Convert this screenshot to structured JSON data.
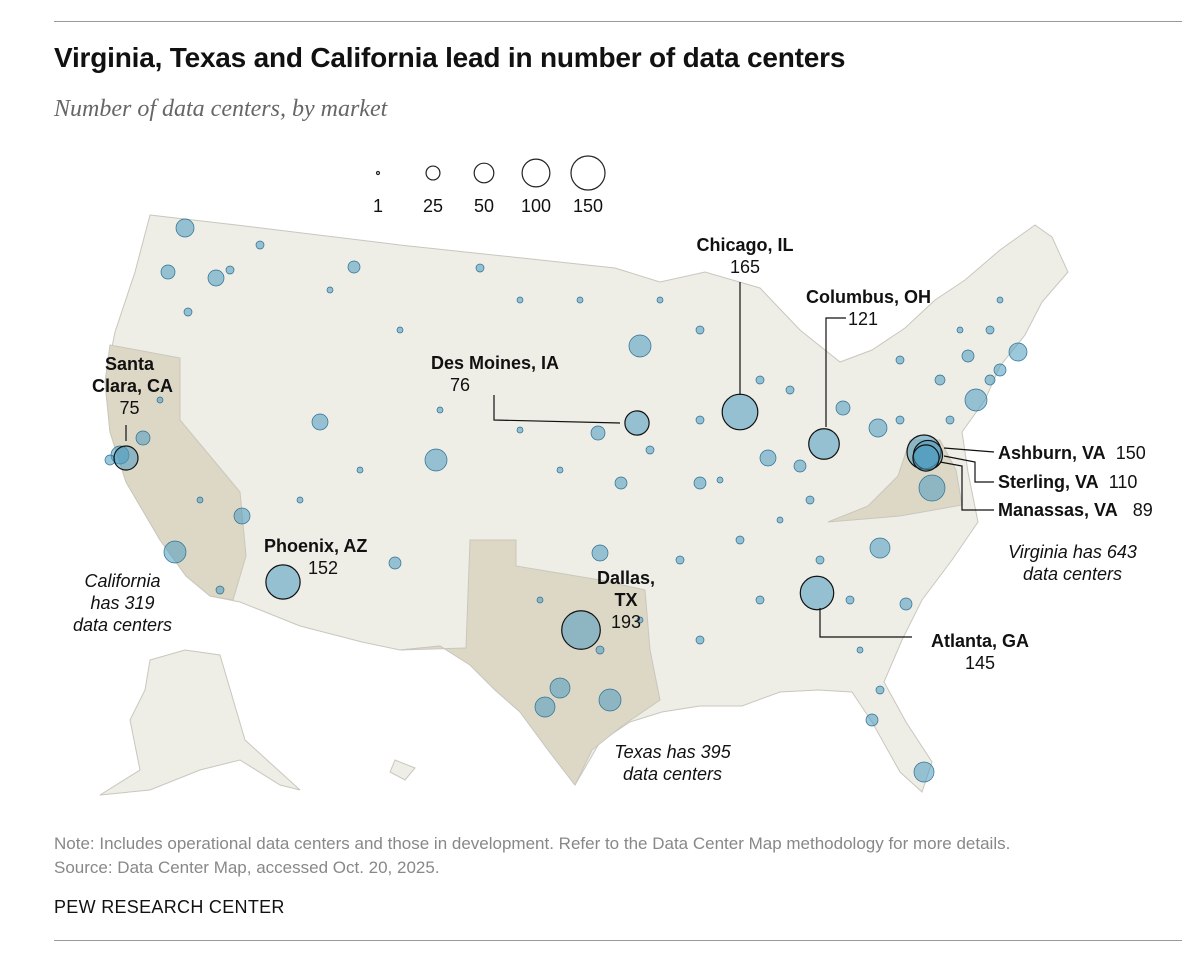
{
  "title": "Virginia, Texas and California lead in number of data centers",
  "subtitle": "Number of data centers, by market",
  "legend": {
    "values": [
      1,
      25,
      50,
      100,
      150
    ],
    "labels": [
      "1",
      "25",
      "50",
      "100",
      "150"
    ]
  },
  "colors": {
    "land": "#eeede6",
    "highlight_state": "#ddd8c6",
    "bubble": "#4a9ac0",
    "bubble_stroke": "#2c6f92",
    "border": "#c9c7bd"
  },
  "chart_data": {
    "type": "bubble-map",
    "title": "Virginia, Texas and California lead in number of data centers",
    "subtitle": "Number of data centers, by market",
    "markets": [
      {
        "name": "Chicago, IL",
        "value": 165
      },
      {
        "name": "Columbus, OH",
        "value": 121
      },
      {
        "name": "Des Moines, IA",
        "value": 76
      },
      {
        "name": "Santa Clara, CA",
        "value": 75
      },
      {
        "name": "Phoenix, AZ",
        "value": 152
      },
      {
        "name": "Dallas, TX",
        "value": 193
      },
      {
        "name": "Ashburn, VA",
        "value": 150
      },
      {
        "name": "Sterling, VA",
        "value": 110
      },
      {
        "name": "Manassas, VA",
        "value": 89
      },
      {
        "name": "Atlanta, GA",
        "value": 145
      }
    ],
    "highlighted_states": [
      "California",
      "Texas",
      "Virginia"
    ]
  },
  "labels": {
    "chicago": {
      "name": "Chicago, IL",
      "value": "165"
    },
    "columbus": {
      "name": "Columbus, OH",
      "value": "121"
    },
    "desmoines": {
      "name": "Des Moines, IA",
      "value": "76"
    },
    "santaclara": {
      "name1": "Santa",
      "name2": "Clara, CA",
      "value": "75"
    },
    "phoenix": {
      "name": "Phoenix, AZ",
      "value": "152"
    },
    "dallas": {
      "name1": "Dallas,",
      "name2": "TX",
      "value": "193"
    },
    "ashburn": {
      "name": "Ashburn, VA",
      "value": "150"
    },
    "sterling": {
      "name": "Sterling, VA",
      "value": "110"
    },
    "manassas": {
      "name": "Manassas, VA",
      "value": "89"
    },
    "atlanta": {
      "name": "Atlanta, GA",
      "value": "145"
    }
  },
  "notes": {
    "california": [
      "California",
      "has 319",
      "data centers"
    ],
    "texas": [
      "Texas has 395",
      "data centers"
    ],
    "virginia": [
      "Virginia has 643",
      "data centers"
    ]
  },
  "footer": {
    "note": "Note: Includes operational data centers and those in development. Refer to the Data Center Map methodology for more details.",
    "source": "Source: Data Center Map, accessed Oct. 20, 2025.",
    "org": "PEW RESEARCH CENTER"
  }
}
